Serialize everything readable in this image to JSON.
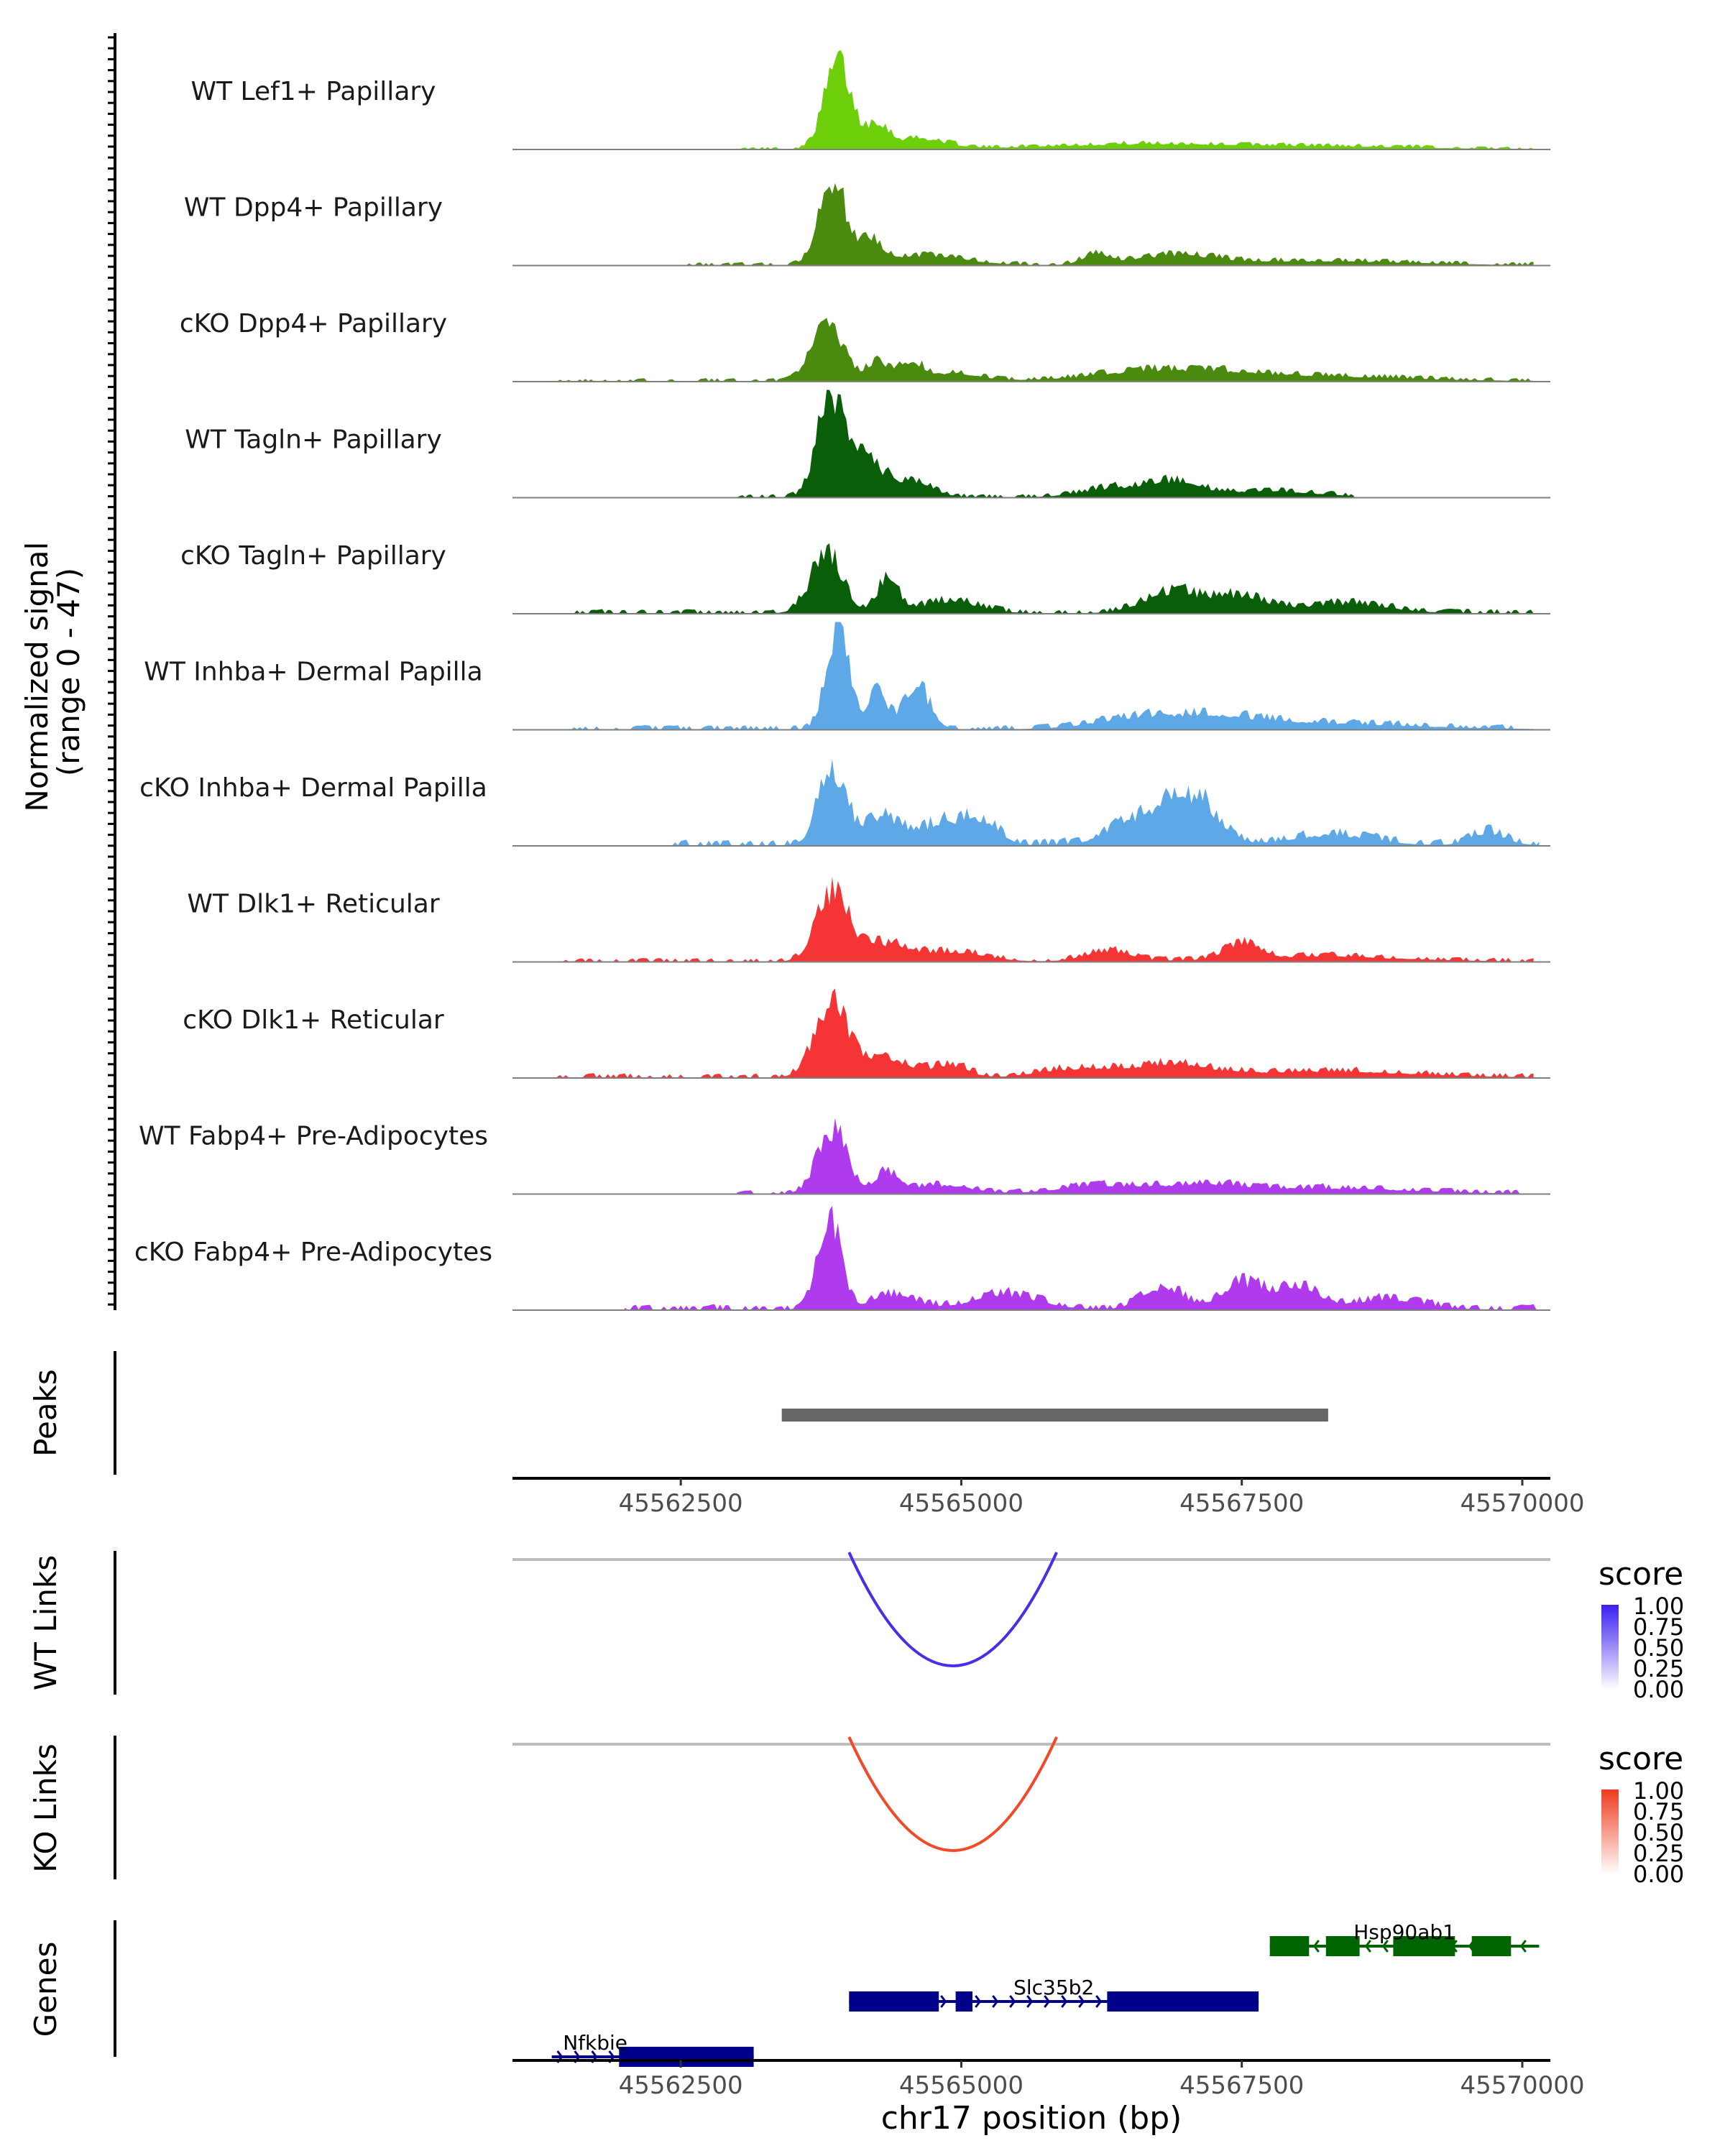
{
  "chart_data": {
    "type": "area",
    "title": "",
    "chromosome": "chr17",
    "xlim": [
      45561000,
      45570250
    ],
    "coverage": {
      "ylabel_line1": "Normalized signal",
      "ylabel_line2": "(range 0 - 47)",
      "ylim": [
        0,
        47
      ],
      "tracks": [
        {
          "name": "WT Lef1+ Papillary",
          "color": "#6ccf0a",
          "start": 45563000,
          "end": 45570100,
          "peaks": [
            [
              45563900,
              80,
              120
            ],
            [
              45564250,
              22,
              90
            ],
            [
              45564600,
              10,
              250
            ],
            [
              45566700,
              5,
              900
            ],
            [
              45568500,
              2,
              700
            ]
          ],
          "noise": 1.5
        },
        {
          "name": "WT Dpp4+ Papillary",
          "color": "#4a8a0f",
          "start": 45562500,
          "end": 45570100,
          "peaks": [
            [
              45563850,
              80,
              120
            ],
            [
              45564200,
              22,
              100
            ],
            [
              45564700,
              9,
              350
            ],
            [
              45566200,
              10,
              120
            ],
            [
              45566900,
              9,
              350
            ],
            [
              45568200,
              4,
              800
            ]
          ],
          "noise": 1.8
        },
        {
          "name": "cKO Dpp4+ Papillary",
          "color": "#4a8a0f",
          "start": 45561400,
          "end": 45570100,
          "peaks": [
            [
              45563800,
              62,
              130
            ],
            [
              45564250,
              18,
              100
            ],
            [
              45564550,
              16,
              100
            ],
            [
              45564900,
              8,
              250
            ],
            [
              45566800,
              9,
              600
            ],
            [
              45568000,
              5,
              900
            ]
          ],
          "noise": 2
        },
        {
          "name": "WT Tagln+ Papillary",
          "color": "#0a5e0a",
          "start": 45563000,
          "end": 45568500,
          "peaks": [
            [
              45563820,
              85,
              110
            ],
            [
              45564100,
              38,
              200
            ],
            [
              45564600,
              14,
              160
            ],
            [
              45566400,
              9,
              300
            ],
            [
              45566900,
              12,
              220
            ],
            [
              45567700,
              6,
              450
            ]
          ],
          "noise": 2
        },
        {
          "name": "cKO Tagln+ Papillary",
          "color": "#0a5e0a",
          "start": 45561400,
          "end": 45570100,
          "peaks": [
            [
              45563800,
              55,
              140
            ],
            [
              45564350,
              34,
              90
            ],
            [
              45564900,
              12,
              250
            ],
            [
              45566900,
              20,
              260
            ],
            [
              45567500,
              15,
              220
            ],
            [
              45568400,
              9,
              400
            ]
          ],
          "noise": 2.5
        },
        {
          "name": "WT Inhba+ Dermal Papilla",
          "color": "#5fa8e8",
          "start": 45561400,
          "end": 45570100,
          "peaks": [
            [
              45563900,
              95,
              100
            ],
            [
              45564250,
              36,
              80
            ],
            [
              45564600,
              40,
              120
            ],
            [
              45566600,
              10,
              400
            ],
            [
              45567300,
              9,
              450
            ],
            [
              45568300,
              5,
              800
            ]
          ],
          "noise": 2.5
        },
        {
          "name": "cKO Inhba+ Dermal Papilla",
          "color": "#5fa8e8",
          "start": 45562400,
          "end": 45570150,
          "peaks": [
            [
              45563850,
              72,
              120
            ],
            [
              45564300,
              28,
              150
            ],
            [
              45564850,
              22,
              200
            ],
            [
              45565200,
              20,
              140
            ],
            [
              45566700,
              30,
              300
            ],
            [
              45567100,
              34,
              200
            ],
            [
              45568300,
              10,
              350
            ],
            [
              45569700,
              12,
              150
            ]
          ],
          "noise": 3.5
        },
        {
          "name": "WT Dlk1+ Reticular",
          "color": "#f53535",
          "start": 45561400,
          "end": 45570100,
          "peaks": [
            [
              45563850,
              65,
              140
            ],
            [
              45564300,
              16,
              200
            ],
            [
              45564900,
              9,
              300
            ],
            [
              45566300,
              10,
              200
            ],
            [
              45567500,
              14,
              150
            ],
            [
              45568200,
              5,
              700
            ]
          ],
          "noise": 2.2
        },
        {
          "name": "cKO Dlk1+ Reticular",
          "color": "#f53535",
          "start": 45561400,
          "end": 45570100,
          "peaks": [
            [
              45563850,
              68,
              150
            ],
            [
              45564350,
              18,
              200
            ],
            [
              45564900,
              12,
              150
            ],
            [
              45566100,
              9,
              350
            ],
            [
              45566900,
              11,
              300
            ],
            [
              45568200,
              6,
              800
            ]
          ],
          "noise": 2.5
        },
        {
          "name": "WT Fabp4+ Pre-Adipocytes",
          "color": "#b03aee",
          "start": 45563000,
          "end": 45570000,
          "peaks": [
            [
              45563850,
              60,
              130
            ],
            [
              45564350,
              20,
              110
            ],
            [
              45564850,
              8,
              250
            ],
            [
              45566200,
              7,
              350
            ],
            [
              45567100,
              8,
              400
            ],
            [
              45568300,
              5,
              700
            ]
          ],
          "noise": 2.2
        },
        {
          "name": "cKO Fabp4+ Pre-Adipocytes",
          "color": "#b03aee",
          "start": 45562000,
          "end": 45570150,
          "peaks": [
            [
              45563820,
              90,
              100
            ],
            [
              45564400,
              14,
              200
            ],
            [
              45565400,
              14,
              300
            ],
            [
              45566800,
              22,
              180
            ],
            [
              45567500,
              24,
              180
            ],
            [
              45568000,
              20,
              200
            ],
            [
              45568800,
              10,
              300
            ]
          ],
          "noise": 3
        }
      ]
    },
    "peaks_track": {
      "label": "Peaks",
      "color": "#666666",
      "regions": [
        [
          45563400,
          45568270
        ]
      ]
    },
    "x_ticks": [
      45562500,
      45565000,
      45567500,
      45570000
    ],
    "x_tick_labels": [
      "45562500",
      "45565000",
      "45567500",
      "45570000"
    ],
    "links": [
      {
        "label": "WT Links",
        "color": "#4530e8",
        "start": 45564000,
        "end": 45565850,
        "score": 0.85,
        "legend_title": "score",
        "legend_colors": [
          "#ffffff",
          "#3a1ef0"
        ],
        "legend_ticks": [
          "1.00",
          "0.75",
          "0.50",
          "0.25",
          "0.00"
        ]
      },
      {
        "label": "KO Links",
        "color": "#f04a28",
        "start": 45564000,
        "end": 45565850,
        "score": 0.85,
        "legend_title": "score",
        "legend_colors": [
          "#ffffff",
          "#f03a1e"
        ],
        "legend_ticks": [
          "1.00",
          "0.75",
          "0.50",
          "0.25",
          "0.00"
        ]
      }
    ],
    "genes_track": {
      "label": "Genes",
      "genes": [
        {
          "name": "Hsp90ab1",
          "strand": "-",
          "color": "#006400",
          "start": 45567750,
          "end": 45570150,
          "exons": [
            [
              45567750,
              45568100
            ],
            [
              45568250,
              45568550
            ],
            [
              45568850,
              45569400
            ],
            [
              45569550,
              45569900
            ]
          ]
        },
        {
          "name": "Slc35b2",
          "strand": "+",
          "color": "#00008b",
          "start": 45564000,
          "end": 45567650,
          "exons": [
            [
              45564000,
              45564800
            ],
            [
              45564950,
              45565100
            ],
            [
              45566300,
              45567650
            ]
          ]
        },
        {
          "name": "Nfkbie",
          "strand": "+",
          "color": "#00008b",
          "start": 45561350,
          "end": 45563150,
          "exons": [
            [
              45561950,
              45563150
            ]
          ]
        }
      ]
    },
    "xlabel": "chr17 position (bp)"
  }
}
